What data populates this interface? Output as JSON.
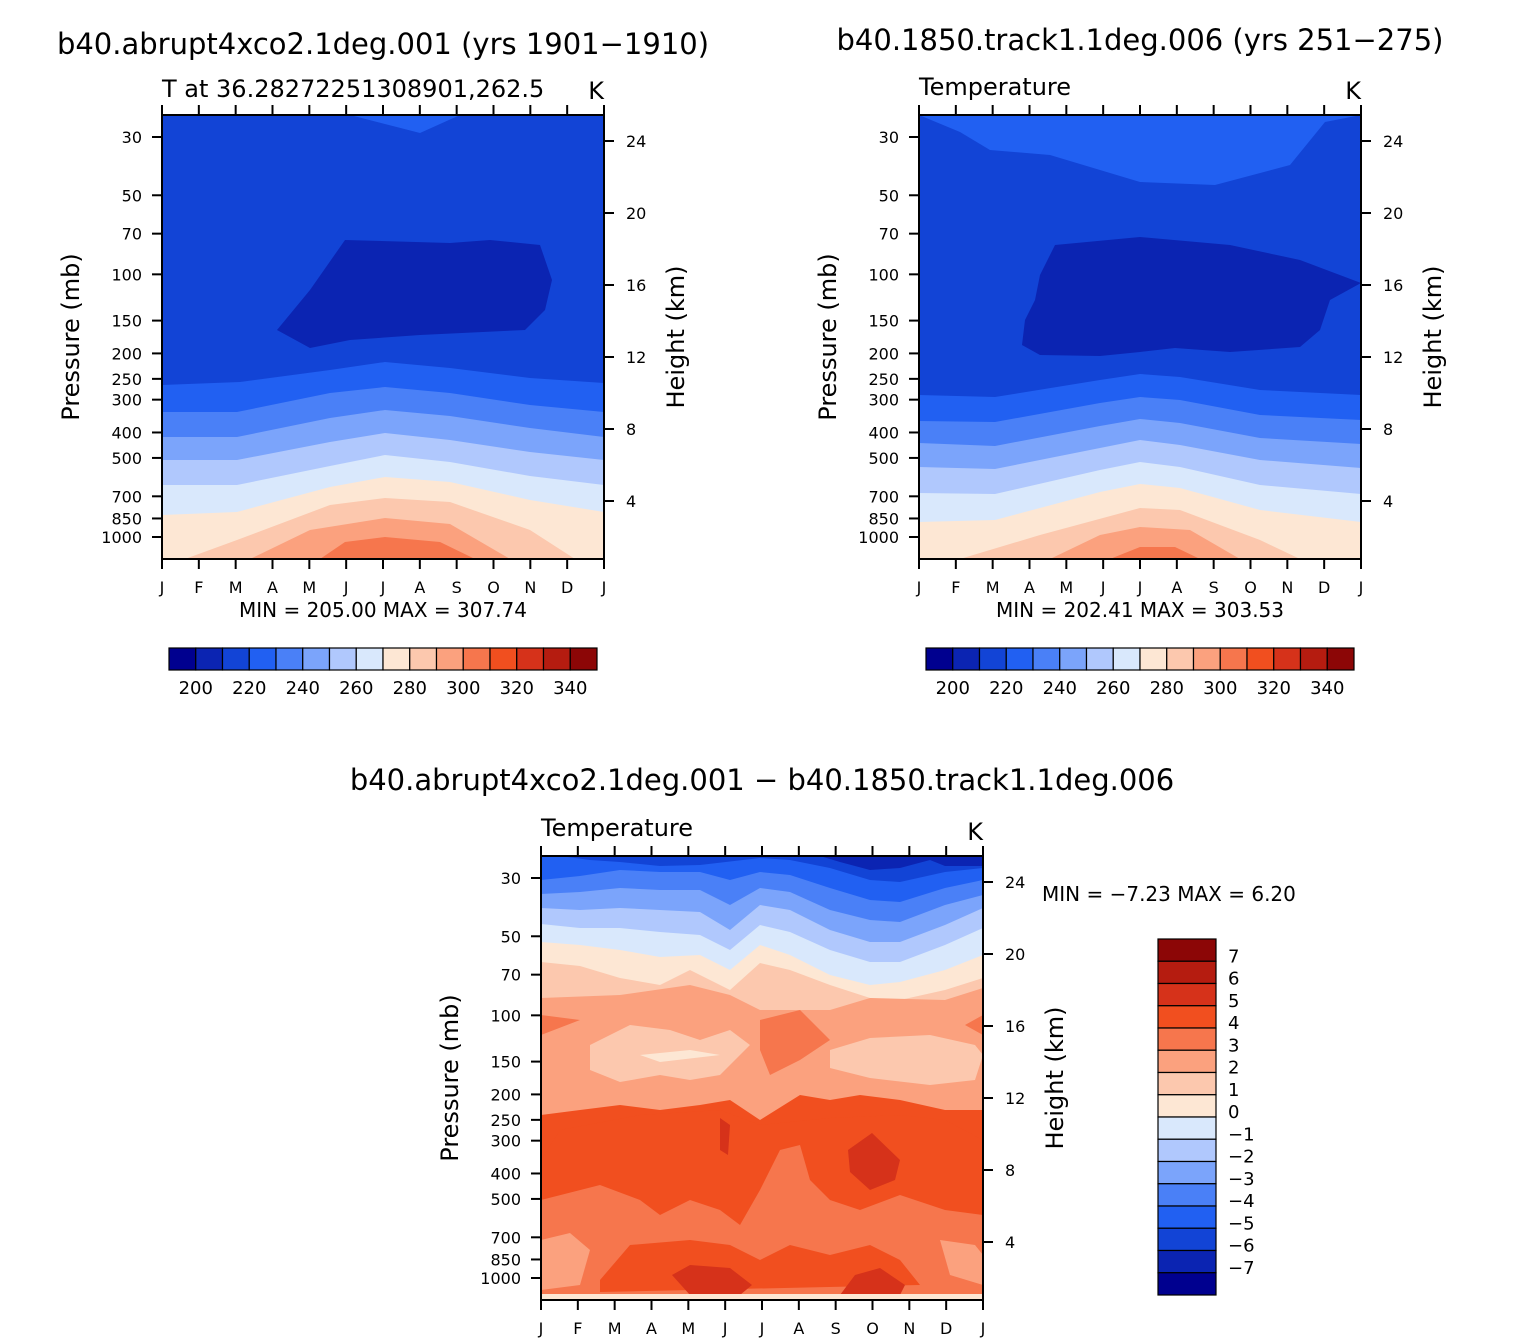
{
  "chart_data": [
    {
      "type": "heatmap",
      "title": "b40.abrupt4xco2.1deg.001 (yrs 1901−1910)",
      "subtitle_left": "T at 36.28272251308901,262.5",
      "subtitle_right": "K",
      "xlabel": "",
      "ylabel": "Pressure (mb)",
      "ylabel_right": "Height (km)",
      "x_ticks": [
        "J",
        "F",
        "M",
        "A",
        "M",
        "J",
        "J",
        "A",
        "S",
        "O",
        "N",
        "D",
        "J"
      ],
      "y_ticks": [
        "30",
        "50",
        "70",
        "100",
        "150",
        "200",
        "250",
        "300",
        "400",
        "500",
        "700",
        "850",
        "1000"
      ],
      "y_ticks_right": [
        "24",
        "20",
        "16",
        "12",
        "8",
        "4"
      ],
      "min_max_text": "MIN = 205.00 MAX = 307.74",
      "colorbar_labels": [
        "200",
        "220",
        "240",
        "260",
        "280",
        "300",
        "320",
        "340"
      ],
      "colors": [
        "#00008f",
        "#0b24b2",
        "#1244d6",
        "#2160f2",
        "#4a80f7",
        "#7ba4fb",
        "#b0c8fd",
        "#d9e8fc",
        "#fde7d4",
        "#fcc8ae",
        "#fba17e",
        "#f6764d",
        "#f14f1f",
        "#d6321a",
        "#b51c10",
        "#8c0606"
      ],
      "levels": [
        200,
        210,
        220,
        230,
        240,
        250,
        260,
        270,
        280,
        290,
        300,
        310,
        320,
        330,
        340
      ],
      "value_range": [
        205.0,
        307.74
      ]
    },
    {
      "type": "heatmap",
      "title": "b40.1850.track1.1deg.006 (yrs 251−275)",
      "subtitle_left": "Temperature",
      "subtitle_right": "K",
      "ylabel": "Pressure (mb)",
      "ylabel_right": "Height (km)",
      "x_ticks": [
        "J",
        "F",
        "M",
        "A",
        "M",
        "J",
        "J",
        "A",
        "S",
        "O",
        "N",
        "D",
        "J"
      ],
      "y_ticks": [
        "30",
        "50",
        "70",
        "100",
        "150",
        "200",
        "250",
        "300",
        "400",
        "500",
        "700",
        "850",
        "1000"
      ],
      "y_ticks_right": [
        "24",
        "20",
        "16",
        "12",
        "8",
        "4"
      ],
      "min_max_text": "MIN = 202.41 MAX = 303.53",
      "colorbar_labels": [
        "200",
        "220",
        "240",
        "260",
        "280",
        "300",
        "320",
        "340"
      ],
      "value_range": [
        202.41,
        303.53
      ]
    },
    {
      "type": "heatmap",
      "title": "b40.abrupt4xco2.1deg.001 − b40.1850.track1.1deg.006",
      "subtitle_left": "Temperature",
      "subtitle_right": "K",
      "ylabel": "Pressure (mb)",
      "ylabel_right": "Height (km)",
      "x_ticks": [
        "J",
        "F",
        "M",
        "A",
        "M",
        "J",
        "J",
        "A",
        "S",
        "O",
        "N",
        "D",
        "J"
      ],
      "y_ticks": [
        "30",
        "50",
        "70",
        "100",
        "150",
        "200",
        "250",
        "300",
        "400",
        "500",
        "700",
        "850",
        "1000"
      ],
      "y_ticks_right": [
        "24",
        "20",
        "16",
        "12",
        "8",
        "4"
      ],
      "min_max_text": "MIN = −7.23 MAX = 6.20",
      "colorbar_labels": [
        "7",
        "6",
        "5",
        "4",
        "3",
        "2",
        "1",
        "0",
        "−1",
        "−2",
        "−3",
        "−4",
        "−5",
        "−6",
        "−7"
      ],
      "colors": [
        "#8c0606",
        "#b51c10",
        "#d6321a",
        "#f14f1f",
        "#f6764d",
        "#fba17e",
        "#fcc8ae",
        "#fde7d4",
        "#d9e8fc",
        "#b0c8fd",
        "#7ba4fb",
        "#4a80f7",
        "#2160f2",
        "#1244d6",
        "#0b24b2",
        "#00008f"
      ],
      "value_range": [
        -7.23,
        6.2
      ]
    }
  ]
}
